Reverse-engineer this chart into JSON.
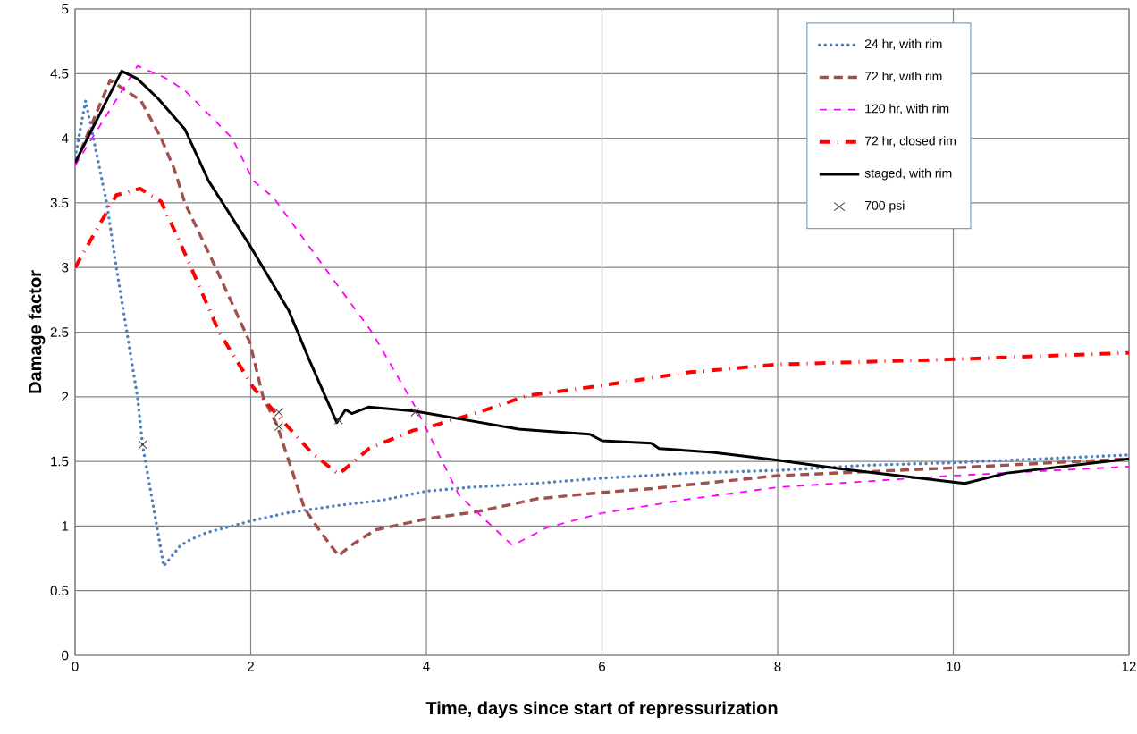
{
  "chart_data": {
    "type": "line",
    "xlabel": "Time, days since start of repressurization",
    "ylabel": "Damage factor",
    "xlim": [
      0,
      12
    ],
    "ylim": [
      0,
      5
    ],
    "xticks": [
      0,
      2,
      4,
      6,
      8,
      10,
      12
    ],
    "yticks": [
      0,
      0.5,
      1,
      1.5,
      2,
      2.5,
      3,
      3.5,
      4,
      4.5,
      5
    ],
    "grid": true,
    "legend": "top right",
    "marker": "none",
    "series": [
      {
        "name": "24 hr, with rim",
        "color": "#4f81bd",
        "line_style": "dotted",
        "x": [
          0,
          0.12,
          0.36,
          0.47,
          0.59,
          0.71,
          0.77,
          1.01,
          1.2,
          1.33,
          1.5,
          1.79,
          2.0,
          2.4,
          3.0,
          3.5,
          4.0,
          4.5,
          5.0,
          5.25,
          6.0,
          7.0,
          8.0,
          9.0,
          10.0,
          11.0,
          12.0
        ],
        "values": [
          3.85,
          4.29,
          3.5,
          3.0,
          2.5,
          2.0,
          1.62,
          0.69,
          0.85,
          0.9,
          0.95,
          1.0,
          1.04,
          1.1,
          1.16,
          1.2,
          1.27,
          1.3,
          1.32,
          1.33,
          1.37,
          1.41,
          1.43,
          1.47,
          1.49,
          1.52,
          1.55
        ]
      },
      {
        "name": "72 hr, with rim",
        "color": "#a0504d",
        "line_style": "dashed",
        "x": [
          0,
          0.4,
          0.75,
          0.98,
          1.13,
          1.25,
          1.6,
          1.87,
          1.99,
          2.14,
          2.3,
          2.61,
          2.8,
          3.0,
          3.14,
          3.42,
          4.03,
          4.57,
          5.05,
          5.25,
          6.0,
          6.57,
          8.0,
          10.0,
          12.0
        ],
        "values": [
          3.8,
          4.45,
          4.29,
          4.0,
          3.76,
          3.5,
          3.0,
          2.6,
          2.42,
          2.0,
          1.78,
          1.14,
          0.95,
          0.77,
          0.85,
          0.97,
          1.06,
          1.11,
          1.18,
          1.21,
          1.26,
          1.29,
          1.39,
          1.45,
          1.52
        ]
      },
      {
        "name": "120 hr, with rim",
        "color": "#ff00ff",
        "line_style": "dashed",
        "x": [
          0,
          0.71,
          1.02,
          1.25,
          1.79,
          2.03,
          2.26,
          2.84,
          3.38,
          3.9,
          4.37,
          4.98,
          5.38,
          6.0,
          7.0,
          8.0,
          10.0,
          12.0
        ],
        "values": [
          3.79,
          4.56,
          4.47,
          4.37,
          4.0,
          3.67,
          3.54,
          3.0,
          2.5,
          1.89,
          1.24,
          0.85,
          0.99,
          1.1,
          1.21,
          1.3,
          1.39,
          1.46
        ]
      },
      {
        "name": "72 hr, closed rim",
        "color": "#ff0000",
        "line_style": "dashdot",
        "x": [
          0,
          0.47,
          0.74,
          0.98,
          1.25,
          1.64,
          2.03,
          2.34,
          2.69,
          3.0,
          3.35,
          3.85,
          4.0,
          4.64,
          5.15,
          5.93,
          7.0,
          8.0,
          10.0,
          12.0
        ],
        "values": [
          3.0,
          3.56,
          3.61,
          3.51,
          3.11,
          2.5,
          2.07,
          1.83,
          1.57,
          1.4,
          1.6,
          1.74,
          1.76,
          1.89,
          2.01,
          2.08,
          2.19,
          2.25,
          2.29,
          2.34
        ]
      },
      {
        "name": "staged, with rim",
        "color": "#000000",
        "line_style": "solid",
        "x": [
          0,
          0.53,
          0.71,
          0.94,
          1.25,
          1.52,
          1.99,
          2.43,
          2.67,
          2.98,
          3.08,
          3.15,
          3.34,
          3.86,
          4.37,
          5.05,
          5.25,
          5.86,
          6.0,
          6.56,
          6.65,
          7.26,
          8.0,
          8.74,
          10.0,
          10.13,
          10.61,
          12.0
        ],
        "values": [
          3.81,
          4.52,
          4.46,
          4.31,
          4.07,
          3.67,
          3.17,
          2.67,
          2.28,
          1.8,
          1.9,
          1.87,
          1.92,
          1.89,
          1.83,
          1.75,
          1.74,
          1.71,
          1.66,
          1.64,
          1.6,
          1.57,
          1.51,
          1.44,
          1.34,
          1.33,
          1.41,
          1.52
        ]
      },
      {
        "name": "700 psi",
        "type": "scatter",
        "color": "#404040",
        "marker": "cross",
        "x": [
          0.77,
          2.32,
          2.32,
          3.0,
          3.87
        ],
        "values": [
          1.63,
          1.88,
          1.77,
          1.82,
          1.88
        ]
      }
    ]
  }
}
